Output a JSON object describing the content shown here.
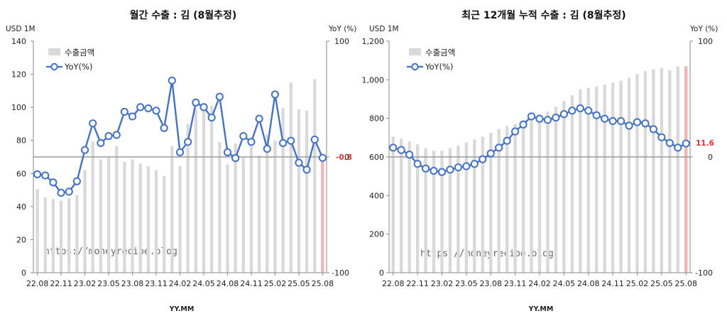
{
  "colors": {
    "bar": "#d9d9d9",
    "bar_last": "#f2b5b5",
    "line": "#4472c4",
    "marker_fill": "#ffffff",
    "axis": "#888888",
    "refline": "#9a9a9a",
    "highlight": "#e03030"
  },
  "watermark": "https://moneyrecipe.blog",
  "chart_data": [
    {
      "type": "bar+line",
      "title": "월간 수출 : 김 (8월추정)",
      "y_unit_left": "USD 1M",
      "y_unit_right": "YoY (%)",
      "xlabel": "YY.MM",
      "ylim_left": [
        0,
        140
      ],
      "left_ticks": [
        0,
        20,
        40,
        60,
        80,
        100,
        120,
        140
      ],
      "ylim_right": [
        -100,
        100
      ],
      "right_ticks": [
        -100,
        0,
        100
      ],
      "legend": {
        "bar": "수출금액",
        "line": "YoY(%)",
        "position": "top-left"
      },
      "months": [
        "22.08",
        "22.09",
        "22.10",
        "22.11",
        "22.12",
        "23.01",
        "23.02",
        "23.03",
        "23.04",
        "23.05",
        "23.06",
        "23.07",
        "23.08",
        "23.09",
        "23.10",
        "23.11",
        "23.12",
        "24.01",
        "24.02",
        "24.03",
        "24.04",
        "24.05",
        "24.06",
        "24.07",
        "24.08",
        "24.09",
        "24.10",
        "24.11",
        "24.12",
        "25.01",
        "25.02",
        "25.03",
        "25.04",
        "25.05",
        "25.06",
        "25.07",
        "25.08"
      ],
      "x_tick_labels": [
        "22.08",
        "22.11",
        "23.02",
        "23.05",
        "23.08",
        "23.11",
        "24.02",
        "24.05",
        "24.08",
        "24.11",
        "25.02",
        "25.05",
        "25.08"
      ],
      "export_usd_1m": [
        50.5,
        45.5,
        44.5,
        43.5,
        45,
        47,
        62,
        79.5,
        68.5,
        69.5,
        76.5,
        67,
        68.5,
        66,
        64.5,
        62,
        58.5,
        76.5,
        64.5,
        90,
        99,
        102,
        101,
        79,
        65.5,
        78,
        69.5,
        78,
        71,
        83.5,
        80,
        99.5,
        115,
        99,
        98,
        117,
        69.5
      ],
      "yoy_pct": [
        -15,
        -16,
        -22,
        -31,
        -30,
        -21,
        6,
        29,
        12,
        18,
        19,
        39,
        35,
        43,
        42,
        40,
        25,
        66,
        4,
        13,
        47,
        43,
        34,
        52,
        4,
        -1,
        18,
        13,
        33,
        7,
        54,
        12,
        14,
        -5,
        -11,
        15,
        -0.8
      ],
      "last_label": "-0.8"
    },
    {
      "type": "bar+line",
      "title": "최근 12개월 누적 수출 : 김 (8월추정)",
      "y_unit_left": "USD 1M",
      "y_unit_right": "YoY (%)",
      "xlabel": "YY.MM",
      "ylim_left": [
        0,
        1200
      ],
      "left_ticks": [
        0,
        200,
        400,
        600,
        800,
        1000,
        1200
      ],
      "left_tick_labels": [
        "0",
        "200",
        "400",
        "600",
        "800",
        "1,000",
        "1,200"
      ],
      "ylim_right": [
        -100,
        100
      ],
      "right_ticks": [
        -100,
        0,
        100
      ],
      "legend": {
        "bar": "수출금액",
        "line": "YoY(%)",
        "position": "top-left"
      },
      "months": [
        "22.08",
        "22.09",
        "22.10",
        "22.11",
        "22.12",
        "23.01",
        "23.02",
        "23.03",
        "23.04",
        "23.05",
        "23.06",
        "23.07",
        "23.08",
        "23.09",
        "23.10",
        "23.11",
        "23.12",
        "24.01",
        "24.02",
        "24.03",
        "24.04",
        "24.05",
        "24.06",
        "24.07",
        "24.08",
        "24.09",
        "24.10",
        "24.11",
        "24.12",
        "25.01",
        "25.02",
        "25.03",
        "25.04",
        "25.05",
        "25.06",
        "25.07",
        "25.08"
      ],
      "x_tick_labels": [
        "22.08",
        "22.11",
        "23.02",
        "23.05",
        "23.08",
        "23.11",
        "24.02",
        "24.05",
        "24.08",
        "24.11",
        "25.02",
        "25.05",
        "25.08"
      ],
      "export_usd_1m": [
        705,
        695,
        680,
        665,
        645,
        632,
        632,
        645,
        658,
        675,
        690,
        705,
        725,
        745,
        760,
        770,
        790,
        810,
        820,
        835,
        860,
        890,
        920,
        950,
        958,
        965,
        975,
        985,
        995,
        1010,
        1030,
        1045,
        1055,
        1060,
        1050,
        1070,
        1070
      ],
      "yoy_pct": [
        8,
        6,
        2,
        -6,
        -10,
        -12,
        -13,
        -11,
        -9,
        -8,
        -6,
        -2,
        3,
        8,
        14,
        22,
        28,
        35,
        33,
        32,
        34,
        37,
        40,
        42,
        40,
        36,
        33,
        31,
        31,
        27,
        30,
        29,
        24,
        17,
        12,
        8,
        11.6
      ],
      "last_label": "11.6"
    }
  ]
}
